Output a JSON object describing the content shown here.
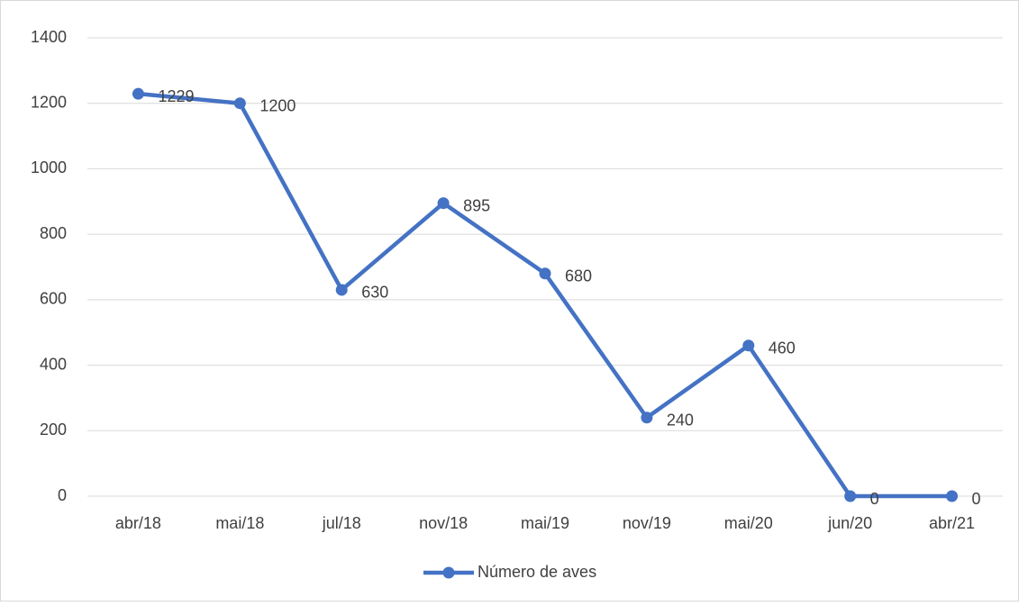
{
  "chart_data": {
    "type": "line",
    "categories": [
      "abr/18",
      "mai/18",
      "jul/18",
      "nov/18",
      "mai/19",
      "nov/19",
      "mai/20",
      "jun/20",
      "abr/21"
    ],
    "series": [
      {
        "name": "Número de aves",
        "color": "#4472c4",
        "values": [
          1229,
          1200,
          630,
          895,
          680,
          240,
          460,
          0,
          0
        ]
      }
    ],
    "ylim": [
      0,
      1400
    ],
    "yticks": [
      0,
      200,
      400,
      600,
      800,
      1000,
      1200,
      1400
    ],
    "grid": true,
    "legend": "bottom"
  }
}
